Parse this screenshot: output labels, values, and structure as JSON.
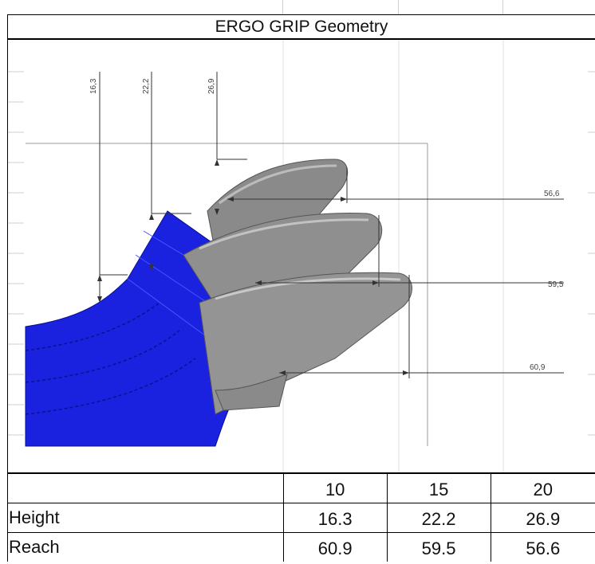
{
  "title": "ERGO GRIP Geometry",
  "drawing": {
    "height_dims": [
      "16,3",
      "22,2",
      "26,9"
    ],
    "reach_dims": [
      "56,6",
      "59,5",
      "60,9"
    ],
    "colors": {
      "base_blue": "#1a22e0",
      "grip_gray": "#8a8a8a",
      "line": "#333333"
    }
  },
  "table": {
    "columns": [
      "",
      "10",
      "15",
      "20"
    ],
    "rows": [
      {
        "label": "Height",
        "values": [
          "16.3",
          "22.2",
          "26.9"
        ]
      },
      {
        "label": "Reach",
        "values": [
          "60.9",
          "59.5",
          "56.6"
        ]
      }
    ]
  }
}
